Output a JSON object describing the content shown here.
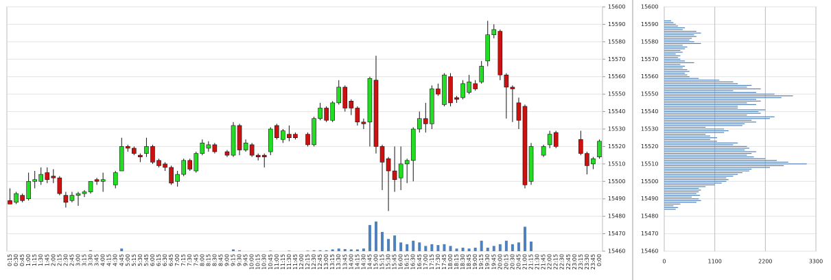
{
  "chart_data": [
    {
      "type": "candlestick",
      "categories": [
        "0:15",
        "0:30",
        "0:45",
        "1:00",
        "1:15",
        "1:30",
        "1:45",
        "2:00",
        "2:15",
        "2:30",
        "2:45",
        "3:00",
        "3:15",
        "3:30",
        "3:45",
        "4:00",
        "4:15",
        "4:30",
        "4:45",
        "5:00",
        "5:15",
        "5:30",
        "5:45",
        "6:00",
        "6:15",
        "6:30",
        "6:45",
        "7:00",
        "7:15",
        "7:30",
        "7:45",
        "8:00",
        "8:15",
        "8:30",
        "8:45",
        "9:00",
        "9:15",
        "9:30",
        "9:45",
        "10:00",
        "10:15",
        "10:30",
        "10:45",
        "11:00",
        "11:15",
        "11:30",
        "11:45",
        "12:00",
        "12:15",
        "12:30",
        "12:45",
        "13:00",
        "13:15",
        "13:30",
        "13:45",
        "14:00",
        "14:15",
        "14:30",
        "14:45",
        "15:00",
        "15:15",
        "15:30",
        "15:45",
        "16:00",
        "16:15",
        "16:30",
        "16:45",
        "17:00",
        "17:15",
        "17:30",
        "17:45",
        "18:00",
        "18:15",
        "18:30",
        "18:45",
        "19:00",
        "19:15",
        "19:30",
        "19:45",
        "20:00",
        "20:15",
        "20:30",
        "20:45",
        "21:00",
        "21:15",
        "21:30",
        "21:45",
        "22:00",
        "22:15",
        "22:30",
        "22:45",
        "23:00",
        "23:15",
        "23:30",
        "23:45",
        "0:00"
      ],
      "open": [
        15489,
        15488,
        15492,
        15490,
        15500,
        15500,
        15505,
        15503,
        15502,
        15492,
        15489,
        15492,
        15493,
        15494,
        15501,
        15500,
        null,
        15498,
        15506,
        15520,
        15519,
        15515,
        15516,
        15520,
        15512,
        15510,
        15508,
        15500,
        15504,
        15512,
        15506,
        15516,
        15519,
        15521,
        null,
        15517,
        15515,
        15532,
        15518,
        15521,
        15515,
        15515,
        15517,
        15532,
        15524,
        15527,
        15527,
        null,
        15527,
        15521,
        15536,
        15542,
        15535,
        15545,
        15554,
        15546,
        15542,
        15534,
        15534,
        15558,
        15520,
        15513,
        15506,
        15502,
        15510,
        15512,
        15530,
        15536,
        15533,
        15553,
        15544,
        15560,
        15548,
        15548,
        15551,
        15556,
        15557,
        15569,
        15584,
        15586,
        15561,
        15554,
        15545,
        15543,
        15500,
        null,
        15515,
        15521,
        15528,
        null,
        null,
        null,
        15524,
        15516,
        15510,
        15514
      ],
      "high": [
        15496,
        15494,
        15493,
        15505,
        15506,
        15508,
        15508,
        15507,
        15503,
        15494,
        15494,
        15494,
        15495,
        15500,
        15502,
        15505,
        null,
        15506,
        15525,
        15521,
        15520,
        15516,
        15525,
        15521,
        15513,
        15511,
        15509,
        15506,
        15513,
        15513,
        15517,
        15524,
        15523,
        15522,
        null,
        15518,
        15534,
        15533,
        15524,
        15522,
        15516,
        15516,
        15531,
        15533,
        15530,
        15532,
        15528,
        null,
        15528,
        15537,
        15545,
        15543,
        15546,
        15558,
        15555,
        15547,
        15543,
        15536,
        15560,
        15572,
        15521,
        15514,
        15520,
        15520,
        15513,
        15531,
        15540,
        15545,
        15555,
        15556,
        15562,
        15562,
        15549,
        15558,
        15561,
        15558,
        15569,
        15592,
        15590,
        15587,
        15562,
        15555,
        15548,
        15544,
        15522,
        null,
        15521,
        15529,
        15529,
        null,
        null,
        null,
        15529,
        15517,
        15514,
        15524
      ],
      "low": [
        15487,
        15487,
        15488,
        15489,
        15496,
        15498,
        15499,
        15499,
        15492,
        15485,
        15488,
        15486,
        15491,
        15493,
        15498,
        15494,
        null,
        15496,
        15506,
        15517,
        15515,
        15511,
        15514,
        15510,
        15508,
        15506,
        15498,
        15497,
        15503,
        15506,
        15505,
        15515,
        15517,
        15516,
        null,
        15514,
        15514,
        15515,
        15517,
        15514,
        15512,
        15508,
        15515,
        15524,
        15522,
        15523,
        15524,
        null,
        15520,
        15520,
        15535,
        15534,
        15534,
        15544,
        15540,
        15538,
        15532,
        15530,
        15520,
        15516,
        15495,
        15483,
        15494,
        15495,
        15499,
        15500,
        15528,
        15528,
        15530,
        15549,
        15543,
        15543,
        15545,
        15547,
        15550,
        15552,
        15556,
        15566,
        15582,
        15558,
        15536,
        15534,
        15530,
        15496,
        15498,
        null,
        15514,
        15519,
        15519,
        null,
        null,
        null,
        15515,
        15504,
        15507,
        15513
      ],
      "close": [
        15487,
        15493,
        15489,
        15500,
        15501,
        15504,
        15501,
        15502,
        15493,
        15488,
        15492,
        15493,
        15494,
        15500,
        15500,
        15501,
        null,
        15505,
        15520,
        15519,
        15516,
        15514,
        15520,
        15511,
        15509,
        15508,
        15499,
        15504,
        15512,
        15507,
        15516,
        15522,
        15521,
        15517,
        null,
        15515,
        15532,
        15518,
        15522,
        15515,
        15514,
        15514,
        15530,
        15525,
        15529,
        15525,
        15525,
        null,
        15521,
        15536,
        15542,
        15535,
        15545,
        15554,
        15542,
        15542,
        15534,
        15533,
        15559,
        15520,
        15511,
        15506,
        15501,
        15510,
        15512,
        15530,
        15536,
        15533,
        15553,
        15550,
        15561,
        15545,
        15547,
        15556,
        15557,
        15553,
        15566,
        15584,
        15587,
        15561,
        15554,
        15553,
        15535,
        15498,
        15520,
        null,
        15520,
        15527,
        15520,
        null,
        null,
        null,
        15516,
        15509,
        15513,
        15523
      ],
      "volume": [
        null,
        null,
        null,
        null,
        null,
        null,
        null,
        null,
        null,
        null,
        null,
        null,
        null,
        0.5,
        null,
        null,
        null,
        null,
        1.5,
        null,
        null,
        null,
        null,
        null,
        null,
        null,
        null,
        null,
        null,
        null,
        null,
        null,
        null,
        null,
        null,
        null,
        1,
        0.5,
        null,
        null,
        null,
        null,
        0.3,
        null,
        null,
        0.3,
        null,
        null,
        0.3,
        0.5,
        0.5,
        0.5,
        1,
        1.5,
        1.2,
        1,
        1,
        1.5,
        15,
        17,
        11,
        7,
        9,
        5,
        4,
        6,
        5,
        3,
        4,
        3.5,
        4,
        3,
        1.5,
        2,
        1.5,
        2,
        6,
        2,
        3,
        4,
        6,
        4,
        5,
        14,
        5.5,
        null,
        null,
        null,
        null,
        null,
        null,
        null,
        null,
        null,
        null,
        null
      ],
      "vlim": [
        0,
        140
      ],
      "up_color": "#22dd22",
      "down_color": "#cc1111",
      "volume_color": "#4f81bd",
      "ylim": [
        15460,
        15600
      ],
      "yticks": [
        15460,
        15470,
        15480,
        15490,
        15500,
        15510,
        15520,
        15530,
        15540,
        15550,
        15560,
        15570,
        15580,
        15590,
        15600
      ],
      "grid": true
    },
    {
      "type": "barh",
      "y": [
        15484,
        15485,
        15486,
        15487,
        15488,
        15489,
        15490,
        15491,
        15492,
        15493,
        15494,
        15495,
        15496,
        15497,
        15498,
        15499,
        15500,
        15501,
        15502,
        15503,
        15504,
        15505,
        15506,
        15507,
        15508,
        15509,
        15510,
        15511,
        15512,
        15513,
        15514,
        15515,
        15516,
        15517,
        15518,
        15519,
        15520,
        15521,
        15522,
        15523,
        15524,
        15525,
        15526,
        15527,
        15528,
        15529,
        15530,
        15531,
        15532,
        15533,
        15534,
        15535,
        15536,
        15537,
        15538,
        15539,
        15540,
        15541,
        15542,
        15543,
        15544,
        15545,
        15546,
        15547,
        15548,
        15549,
        15550,
        15551,
        15552,
        15553,
        15554,
        15555,
        15556,
        15557,
        15558,
        15559,
        15560,
        15561,
        15562,
        15563,
        15564,
        15565,
        15566,
        15567,
        15568,
        15569,
        15570,
        15571,
        15572,
        15573,
        15574,
        15575,
        15576,
        15577,
        15578,
        15579,
        15580,
        15581,
        15582,
        15583,
        15584,
        15585,
        15586,
        15587,
        15588,
        15589,
        15590,
        15591,
        15592
      ],
      "values": [
        250,
        300,
        200,
        350,
        700,
        800,
        750,
        600,
        780,
        700,
        750,
        800,
        750,
        900,
        1100,
        1250,
        1350,
        1400,
        1350,
        1500,
        1600,
        1700,
        1850,
        1900,
        2300,
        2600,
        3100,
        2700,
        2450,
        2200,
        1950,
        1800,
        1900,
        2000,
        1750,
        1850,
        1800,
        1500,
        1600,
        1150,
        1000,
        1150,
        1000,
        900,
        1300,
        1400,
        1300,
        900,
        1700,
        1750,
        2000,
        1900,
        2300,
        2400,
        1800,
        2100,
        2050,
        2200,
        1600,
        1600,
        2000,
        1800,
        2100,
        2000,
        2550,
        2800,
        2400,
        2000,
        1500,
        2100,
        1800,
        1900,
        1600,
        1500,
        1200,
        750,
        550,
        500,
        450,
        550,
        500,
        400,
        450,
        350,
        650,
        450,
        350,
        300,
        350,
        250,
        400,
        350,
        450,
        500,
        400,
        800,
        650,
        550,
        600,
        700,
        650,
        800,
        700,
        400,
        450,
        300,
        250,
        200,
        150
      ],
      "color": "#4f81bd",
      "xlim": [
        0,
        3300
      ],
      "xticks": [
        0,
        1100,
        2200,
        3300
      ],
      "ylim": [
        15460,
        15600
      ],
      "yticks": [
        15460,
        15470,
        15480,
        15490,
        15500,
        15510,
        15520,
        15530,
        15540,
        15550,
        15560,
        15570,
        15580,
        15590,
        15600
      ],
      "grid": true
    }
  ]
}
